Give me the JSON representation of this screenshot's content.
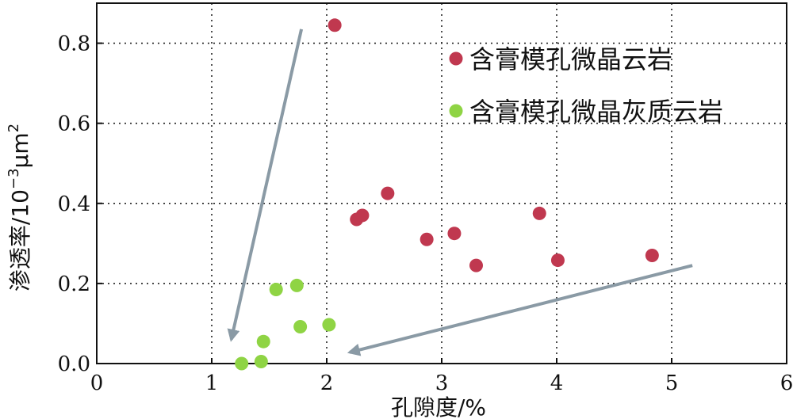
{
  "chart_data": {
    "type": "scatter",
    "xlabel": "孔隙度/%",
    "ylabel": {
      "main": "渗透率/10",
      "exp": "−3",
      "unit": "μm",
      "unit_exp": "2"
    },
    "xlim": [
      0,
      6
    ],
    "ylim": [
      0,
      0.9
    ],
    "x_ticks": [
      0,
      1,
      2,
      3,
      4,
      5,
      6
    ],
    "y_ticks": [
      0.0,
      0.2,
      0.4,
      0.6,
      0.8
    ],
    "x_tick_labels": [
      "0",
      "1",
      "2",
      "3",
      "4",
      "5",
      "6"
    ],
    "y_tick_labels": [
      "0.0",
      "0.2",
      "0.4",
      "0.6",
      "0.8"
    ],
    "grid": true,
    "legend_position": "top-right",
    "series": [
      {
        "name": "含膏模孔微晶云岩",
        "color": "#c0384f",
        "points": [
          [
            2.07,
            0.845
          ],
          [
            2.26,
            0.36
          ],
          [
            2.31,
            0.37
          ],
          [
            2.53,
            0.425
          ],
          [
            2.87,
            0.31
          ],
          [
            3.11,
            0.325
          ],
          [
            3.3,
            0.245
          ],
          [
            3.85,
            0.375
          ],
          [
            4.01,
            0.258
          ],
          [
            4.83,
            0.27
          ]
        ]
      },
      {
        "name": "含膏模孔微晶灰质云岩",
        "color": "#8fd444",
        "points": [
          [
            1.26,
            0.0
          ],
          [
            1.43,
            0.005
          ],
          [
            1.45,
            0.055
          ],
          [
            1.56,
            0.185
          ],
          [
            1.74,
            0.195
          ],
          [
            1.77,
            0.092
          ],
          [
            2.02,
            0.097
          ]
        ]
      }
    ],
    "annotations": [
      {
        "type": "arrow",
        "color": "#8a9aa5",
        "from": [
          1.78,
          0.835
        ],
        "to": [
          1.17,
          0.06
        ]
      },
      {
        "type": "arrow",
        "color": "#8a9aa5",
        "from": [
          5.18,
          0.245
        ],
        "to": [
          2.2,
          0.028
        ]
      }
    ]
  }
}
